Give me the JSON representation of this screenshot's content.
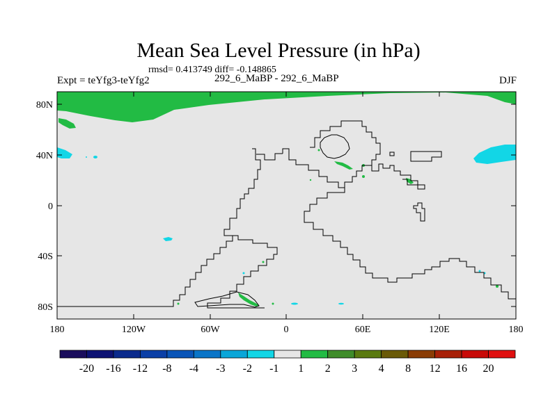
{
  "header": {
    "title": "Mean Sea Level Pressure (in hPa)",
    "stats": "rmsd= 0.413749 diff= -0.148865",
    "experiment": "Expt = teYfg3-teYfg2",
    "comparison": "292_6_MaBP - 292_6_MaBP",
    "season": "DJF"
  },
  "axes": {
    "lon_ticks": [
      "180",
      "120W",
      "60W",
      "0",
      "60E",
      "120E",
      "180"
    ],
    "lat_ticks": [
      "80N",
      "40N",
      "0",
      "40S",
      "80S"
    ]
  },
  "colorbar": {
    "labels": [
      "-20",
      "-16",
      "-12",
      "-8",
      "-4",
      "-3",
      "-2",
      "-1",
      "1",
      "2",
      "3",
      "4",
      "8",
      "12",
      "16",
      "20"
    ],
    "colors": [
      "#1a0d5c",
      "#0d1273",
      "#0a2a8c",
      "#0b3fa6",
      "#0a55b8",
      "#0a75c8",
      "#0aa6d8",
      "#12d6e6",
      "#e6e6e6",
      "#22bb44",
      "#3f8c2a",
      "#5a7a10",
      "#6a5a08",
      "#8a3c05",
      "#a82008",
      "#c80a08",
      "#e01010"
    ]
  },
  "map": {
    "background": "#e6e6e6",
    "positive": "#22bb44",
    "negative": "#12d6e6",
    "land_outline": "#000000"
  }
}
